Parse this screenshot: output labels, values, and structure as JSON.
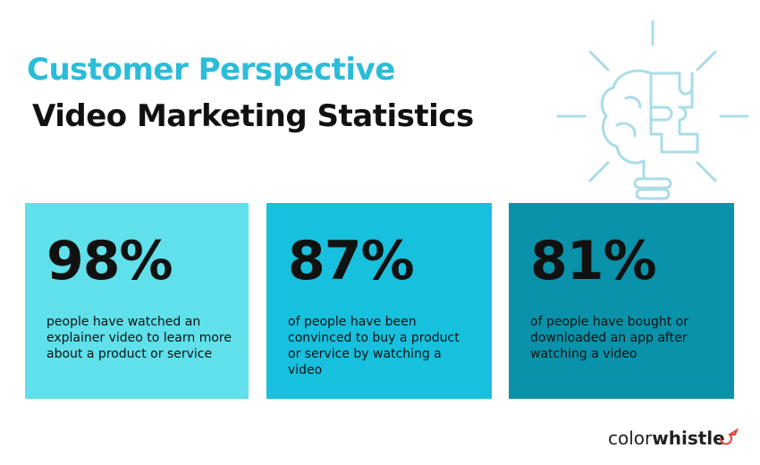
{
  "header": {
    "title_line1": "Customer Perspective",
    "title_line2": "Video Marketing Statistics"
  },
  "cards": [
    {
      "stat": "98%",
      "text": "people have watched an explainer video to learn more about a product or service"
    },
    {
      "stat": "87%",
      "text": "of people have been convinced to buy a product or service by watching a video"
    },
    {
      "stat": "81%",
      "text": "of people have bought or downloaded an app after watching a video"
    }
  ],
  "logo": {
    "part1": "color",
    "part2": "whistle"
  }
}
